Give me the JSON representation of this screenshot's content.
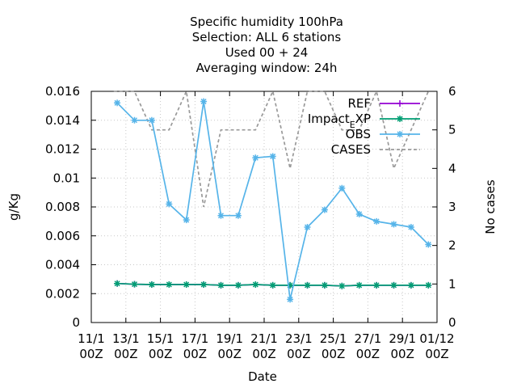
{
  "chart_data": {
    "type": "line",
    "title_lines": [
      "Specific humidity 100hPa",
      "Selection: ALL      6 stations",
      "Used  00 + 24",
      "Averaging window: 24h"
    ],
    "xlabel": "Date",
    "ylabel": "g/Kg",
    "y2label": "No cases",
    "xlim": [
      0,
      20
    ],
    "ylim": [
      0,
      0.016
    ],
    "y2lim": [
      0,
      6
    ],
    "x_ticks": [
      {
        "x": 0,
        "line1": "11/1",
        "line2": "00Z"
      },
      {
        "x": 2,
        "line1": "13/1",
        "line2": "00Z"
      },
      {
        "x": 4,
        "line1": "15/1",
        "line2": "00Z"
      },
      {
        "x": 6,
        "line1": "17/1",
        "line2": "00Z"
      },
      {
        "x": 8,
        "line1": "19/1",
        "line2": "00Z"
      },
      {
        "x": 10,
        "line1": "21/1",
        "line2": "00Z"
      },
      {
        "x": 12,
        "line1": "23/1",
        "line2": "00Z"
      },
      {
        "x": 14,
        "line1": "25/1",
        "line2": "00Z"
      },
      {
        "x": 16,
        "line1": "27/1",
        "line2": "00Z"
      },
      {
        "x": 18,
        "line1": "29/1",
        "line2": "00Z"
      },
      {
        "x": 20,
        "line1": "01/12",
        "line2": "00Z"
      }
    ],
    "y_ticks": [
      {
        "v": 0,
        "label": "0"
      },
      {
        "v": 0.002,
        "label": "0.002"
      },
      {
        "v": 0.004,
        "label": "0.004"
      },
      {
        "v": 0.006,
        "label": "0.006"
      },
      {
        "v": 0.008,
        "label": "0.008"
      },
      {
        "v": 0.01,
        "label": "0.01"
      },
      {
        "v": 0.012,
        "label": "0.012"
      },
      {
        "v": 0.014,
        "label": "0.014"
      },
      {
        "v": 0.016,
        "label": "0.016"
      }
    ],
    "y2_ticks": [
      {
        "v": 0,
        "label": "0"
      },
      {
        "v": 1,
        "label": "1"
      },
      {
        "v": 2,
        "label": "2"
      },
      {
        "v": 3,
        "label": "3"
      },
      {
        "v": 4,
        "label": "4"
      },
      {
        "v": 5,
        "label": "5"
      },
      {
        "v": 6,
        "label": "6"
      }
    ],
    "grid": true,
    "legend_position": "top-right",
    "x": [
      1.5,
      2.5,
      3.5,
      4.5,
      5.5,
      6.5,
      7.5,
      8.5,
      9.5,
      10.5,
      11.5,
      12.5,
      13.5,
      14.5,
      15.5,
      16.5,
      17.5,
      18.5,
      19.5
    ],
    "series": [
      {
        "name": "REF",
        "axis": "y1",
        "color": "#9400d3",
        "marker": "plus",
        "dash": "",
        "values": [
          0.0027,
          0.00265,
          0.00263,
          0.00263,
          0.00263,
          0.00263,
          0.00258,
          0.00258,
          0.00263,
          0.00258,
          0.00258,
          0.00258,
          0.00258,
          0.00253,
          0.00258,
          0.00258,
          0.00258,
          0.00258,
          0.00258
        ]
      },
      {
        "name": "Impact_EXP",
        "axis": "y1",
        "color": "#009e73",
        "marker": "star",
        "dash": "",
        "values": [
          0.0027,
          0.00265,
          0.00263,
          0.00263,
          0.00263,
          0.00263,
          0.00258,
          0.00258,
          0.00263,
          0.00258,
          0.00258,
          0.00258,
          0.00258,
          0.00253,
          0.00258,
          0.00258,
          0.00258,
          0.00258,
          0.00258
        ]
      },
      {
        "name": "OBS",
        "axis": "y1",
        "color": "#56b4e9",
        "marker": "star",
        "dash": "",
        "values": [
          0.0152,
          0.014,
          0.014,
          0.0082,
          0.0071,
          0.0153,
          0.0074,
          0.0074,
          0.0114,
          0.0115,
          0.0016,
          0.0066,
          0.0078,
          0.0093,
          0.0075,
          0.007,
          0.0068,
          0.0066,
          0.0054
        ]
      },
      {
        "name": "CASES",
        "axis": "y2",
        "color": "#999999",
        "marker": "none",
        "dash": "4,3",
        "x": [
          1.3,
          2.5,
          3.5,
          4.5,
          5.5,
          6.5,
          7.5,
          8.5,
          9.5,
          10.5,
          11.5,
          12.5,
          13.5,
          14.5,
          15.5,
          16.5,
          17.5,
          18.5,
          19.5
        ],
        "values": [
          6,
          6,
          5,
          5,
          6,
          3,
          5,
          5,
          5,
          6,
          4,
          6,
          6,
          5,
          5,
          6,
          4,
          5,
          6
        ]
      }
    ]
  }
}
